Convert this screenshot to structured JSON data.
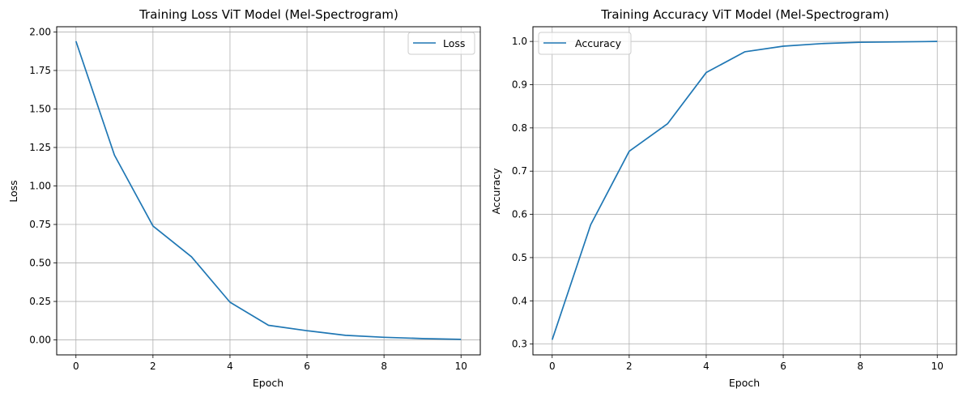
{
  "chart_data": [
    {
      "type": "line",
      "title": "Training Loss ViT Model (Mel-Spectrogram)",
      "xlabel": "Epoch",
      "ylabel": "Loss",
      "xlim": [
        -0.5,
        10.5
      ],
      "ylim": [
        -0.097,
        2.034
      ],
      "xticks": [
        0,
        2,
        4,
        6,
        8,
        10
      ],
      "yticks": [
        0.0,
        0.25,
        0.5,
        0.75,
        1.0,
        1.25,
        1.5,
        1.75,
        2.0
      ],
      "ytick_labels": [
        "0.00",
        "0.25",
        "0.50",
        "0.75",
        "1.00",
        "1.25",
        "1.50",
        "1.75",
        "2.00"
      ],
      "grid": true,
      "legend_position": "top-right",
      "colors": {
        "line": "#1f77b4",
        "grid": "#b0b0b0"
      },
      "series": [
        {
          "name": "Loss",
          "x": [
            0,
            1,
            2,
            3,
            4,
            5,
            6,
            7,
            8,
            9,
            10
          ],
          "values": [
            1.94,
            1.2,
            0.74,
            0.54,
            0.245,
            0.095,
            0.06,
            0.03,
            0.017,
            0.009,
            0.004
          ]
        }
      ]
    },
    {
      "type": "line",
      "title": "Training Accuracy ViT Model (Mel-Spectrogram)",
      "xlabel": "Epoch",
      "ylabel": "Accuracy",
      "xlim": [
        -0.5,
        10.5
      ],
      "ylim": [
        0.275,
        1.034
      ],
      "xticks": [
        0,
        2,
        4,
        6,
        8,
        10
      ],
      "yticks": [
        0.3,
        0.4,
        0.5,
        0.6,
        0.7,
        0.8,
        0.9,
        1.0
      ],
      "ytick_labels": [
        "0.3",
        "0.4",
        "0.5",
        "0.6",
        "0.7",
        "0.8",
        "0.9",
        "1.0"
      ],
      "grid": true,
      "legend_position": "top-left",
      "colors": {
        "line": "#1f77b4",
        "grid": "#b0b0b0"
      },
      "series": [
        {
          "name": "Accuracy",
          "x": [
            0,
            1,
            2,
            3,
            4,
            5,
            6,
            7,
            8,
            9,
            10
          ],
          "values": [
            0.31,
            0.576,
            0.746,
            0.81,
            0.928,
            0.976,
            0.989,
            0.995,
            0.998,
            0.999,
            1.0
          ]
        }
      ]
    }
  ]
}
